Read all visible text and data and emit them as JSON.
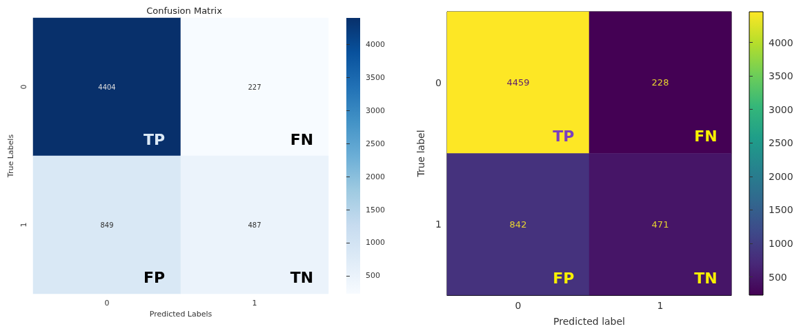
{
  "chart_data": [
    {
      "type": "heatmap",
      "title": "Confusion Matrix",
      "xlabel": "Predicted Labels",
      "ylabel": "True Labels",
      "categories": [
        "0",
        "1"
      ],
      "y_categories": [
        "0",
        "1"
      ],
      "cells": [
        [
          4404,
          227
        ],
        [
          849,
          487
        ]
      ],
      "data_labels": true,
      "clim": [
        227,
        4404
      ],
      "cticks": [
        500,
        1000,
        1500,
        2000,
        2500,
        3000,
        3500,
        4000
      ],
      "annotations": [
        "TP",
        "FN",
        "FP",
        "TN"
      ]
    },
    {
      "type": "heatmap",
      "xlabel": "Predicted label",
      "ylabel": "True label",
      "categories": [
        "0",
        "1"
      ],
      "y_categories": [
        "0",
        "1"
      ],
      "cells": [
        [
          4459,
          228
        ],
        [
          842,
          471
        ]
      ],
      "data_labels": true,
      "clim": [
        228,
        4459
      ],
      "cticks": [
        500,
        1000,
        1500,
        2000,
        2500,
        3000,
        3500,
        4000
      ],
      "annotations": [
        "TP",
        "FN",
        "FP",
        "TN"
      ]
    }
  ]
}
